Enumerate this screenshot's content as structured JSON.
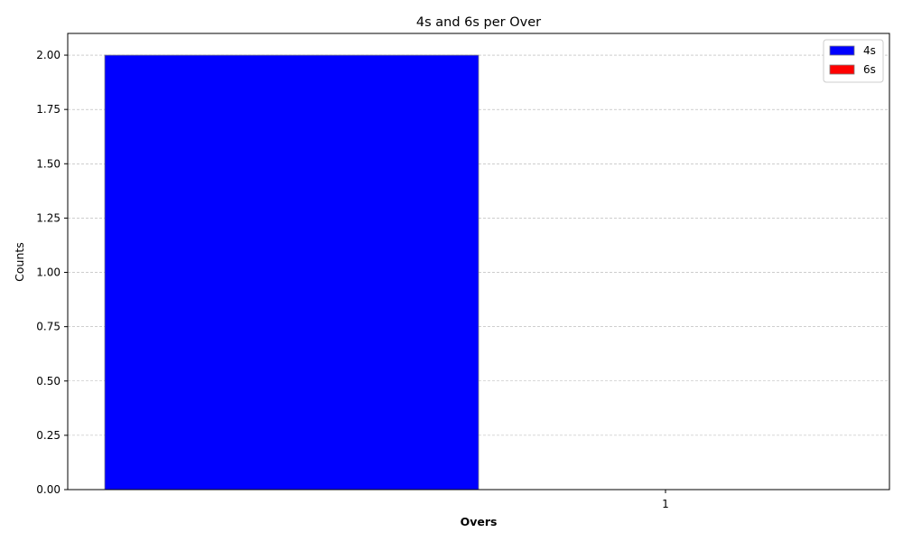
{
  "chart_data": {
    "type": "bar",
    "title": "4s and 6s per Over",
    "xlabel": "Overs",
    "ylabel": "Counts",
    "categories": [
      "1"
    ],
    "series": [
      {
        "name": "4s",
        "values": [
          2
        ],
        "color": "#0000ff"
      },
      {
        "name": "6s",
        "values": [
          0
        ],
        "color": "#ff0000"
      }
    ],
    "ylim": [
      0,
      2.1
    ],
    "yticks": [
      "0.00",
      "0.25",
      "0.50",
      "0.75",
      "1.00",
      "1.25",
      "1.50",
      "1.75",
      "2.00"
    ],
    "grid": "y-dashed",
    "legend_position": "top-right"
  }
}
